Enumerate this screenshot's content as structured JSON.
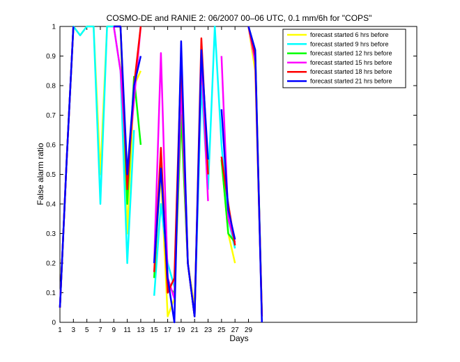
{
  "chart_data": {
    "type": "line",
    "title": "COSMO-DE and RANIE 2: 06/2007 00–06 UTC, 0.1 mm/6h for \"COPS\"",
    "xlabel": "Days",
    "ylabel": "False alarm ratio",
    "xlim": [
      1,
      54
    ],
    "ylim": [
      0,
      1
    ],
    "xticks": [
      1,
      3,
      5,
      7,
      9,
      11,
      13,
      15,
      17,
      19,
      21,
      23,
      25,
      27,
      29
    ],
    "yticks": [
      0,
      0.1,
      0.2,
      0.3,
      0.4,
      0.5,
      0.6,
      0.7,
      0.8,
      0.9,
      1
    ],
    "ytick_labels": [
      "0",
      "0.1",
      "0.2",
      "0.3",
      "0.4",
      "0.5",
      "0.6",
      "0.7",
      "0.8",
      "0.9",
      "1"
    ],
    "legend_position": "top-right",
    "series": [
      {
        "name": "forecast started 6 hrs before",
        "color": "#ffff00",
        "points": [
          [
            1,
            0.05
          ],
          [
            2,
            0.55
          ],
          [
            3,
            1.0
          ],
          [
            4,
            0.97
          ],
          [
            5,
            1.0
          ],
          [
            6,
            1.0
          ],
          [
            7,
            0.5
          ],
          [
            8,
            1.0
          ],
          [
            9,
            1.0
          ],
          [
            10,
            1.0
          ],
          [
            11,
            0.3
          ],
          [
            12,
            0.8
          ],
          [
            13,
            0.85
          ],
          [
            null,
            null
          ],
          [
            15,
            0.2
          ],
          [
            16,
            0.5
          ],
          [
            17,
            0.02
          ],
          [
            18,
            0.08
          ],
          [
            19,
            0.7
          ],
          [
            20,
            0.2
          ],
          [
            21,
            0.05
          ],
          [
            22,
            0.85
          ],
          [
            23,
            0.5
          ],
          [
            null,
            null
          ],
          [
            25,
            0.55
          ],
          [
            26,
            0.3
          ],
          [
            27,
            0.2
          ],
          [
            null,
            null
          ],
          [
            29,
            1.0
          ],
          [
            30,
            0.85
          ],
          [
            31,
            0.02
          ]
        ]
      },
      {
        "name": "forecast started 9 hrs before",
        "color": "#00ffff",
        "points": [
          [
            1,
            0.05
          ],
          [
            2,
            0.55
          ],
          [
            3,
            1.0
          ],
          [
            4,
            0.97
          ],
          [
            5,
            1.0
          ],
          [
            6,
            1.0
          ],
          [
            7,
            0.4
          ],
          [
            8,
            1.0
          ],
          [
            9,
            1.0
          ],
          [
            10,
            0.85
          ],
          [
            11,
            0.2
          ],
          [
            12,
            0.65
          ],
          [
            null,
            null
          ],
          [
            15,
            0.09
          ],
          [
            16,
            0.4
          ],
          [
            17,
            0.2
          ],
          [
            18,
            0.12
          ],
          [
            19,
            0.75
          ],
          [
            20,
            0.2
          ],
          [
            21,
            0.02
          ],
          [
            22,
            0.8
          ],
          [
            23,
            0.45
          ],
          [
            24,
            1.0
          ],
          [
            25,
            0.6
          ],
          [
            26,
            0.35
          ],
          [
            27,
            0.25
          ],
          [
            null,
            null
          ],
          [
            29,
            1.0
          ],
          [
            30,
            0.9
          ],
          [
            31,
            0.02
          ]
        ]
      },
      {
        "name": "forecast started 12 hrs before",
        "color": "#00ff00",
        "points": [
          [
            1,
            0.05
          ],
          [
            2,
            0.55
          ],
          [
            3,
            1.0
          ],
          [
            null,
            null
          ],
          [
            9,
            1.0
          ],
          [
            10,
            1.0
          ],
          [
            11,
            0.4
          ],
          [
            12,
            0.83
          ],
          [
            13,
            0.6
          ],
          [
            null,
            null
          ],
          [
            15,
            0.15
          ],
          [
            16,
            0.55
          ],
          [
            17,
            0.12
          ],
          [
            18,
            0.1
          ],
          [
            19,
            0.7
          ],
          [
            20,
            0.2
          ],
          [
            21,
            0.02
          ],
          [
            22,
            0.9
          ],
          [
            23,
            0.5
          ],
          [
            null,
            null
          ],
          [
            25,
            0.55
          ],
          [
            26,
            0.3
          ],
          [
            27,
            0.27
          ],
          [
            null,
            null
          ],
          [
            29,
            1.0
          ],
          [
            30,
            0.92
          ],
          [
            31,
            0.02
          ]
        ]
      },
      {
        "name": "forecast started 15 hrs before",
        "color": "#ff00ff",
        "points": [
          [
            1,
            0.05
          ],
          [
            2,
            0.55
          ],
          [
            3,
            1.0
          ],
          [
            null,
            null
          ],
          [
            9,
            1.0
          ],
          [
            10,
            0.85
          ],
          [
            11,
            0.5
          ],
          [
            12,
            0.75
          ],
          [
            13,
            1.0
          ],
          [
            null,
            null
          ],
          [
            15,
            0.2
          ],
          [
            16,
            0.91
          ],
          [
            17,
            0.15
          ],
          [
            18,
            0.08
          ],
          [
            19,
            0.8
          ],
          [
            20,
            0.2
          ],
          [
            21,
            0.02
          ],
          [
            22,
            0.9
          ],
          [
            23,
            0.41
          ],
          [
            null,
            null
          ],
          [
            25,
            0.9
          ],
          [
            26,
            0.35
          ],
          [
            27,
            0.27
          ],
          [
            null,
            null
          ],
          [
            29,
            1.0
          ],
          [
            30,
            0.88
          ],
          [
            31,
            0.02
          ]
        ]
      },
      {
        "name": "forecast started 18 hrs before",
        "color": "#ff0000",
        "points": [
          [
            1,
            0.05
          ],
          [
            2,
            0.55
          ],
          [
            3,
            1.0
          ],
          [
            null,
            null
          ],
          [
            9,
            1.0
          ],
          [
            10,
            1.0
          ],
          [
            11,
            0.45
          ],
          [
            12,
            0.8
          ],
          [
            13,
            1.0
          ],
          [
            null,
            null
          ],
          [
            15,
            0.17
          ],
          [
            16,
            0.59
          ],
          [
            17,
            0.1
          ],
          [
            18,
            0.15
          ],
          [
            19,
            0.9
          ],
          [
            20,
            0.2
          ],
          [
            21,
            0.02
          ],
          [
            22,
            0.96
          ],
          [
            23,
            0.5
          ],
          [
            null,
            null
          ],
          [
            25,
            0.56
          ],
          [
            26,
            0.4
          ],
          [
            27,
            0.26
          ],
          [
            null,
            null
          ],
          [
            29,
            1.0
          ],
          [
            30,
            0.9
          ],
          [
            31,
            0.02
          ]
        ]
      },
      {
        "name": "forecast started 21 hrs before",
        "color": "#0000ff",
        "points": [
          [
            1,
            0.05
          ],
          [
            2,
            0.55
          ],
          [
            3,
            1.0
          ],
          [
            null,
            null
          ],
          [
            9,
            1.0
          ],
          [
            10,
            1.0
          ],
          [
            11,
            0.5
          ],
          [
            12,
            0.8
          ],
          [
            13,
            0.9
          ],
          [
            null,
            null
          ],
          [
            15,
            0.2
          ],
          [
            16,
            0.52
          ],
          [
            17,
            0.15
          ],
          [
            18,
            0.0
          ],
          [
            19,
            0.95
          ],
          [
            20,
            0.2
          ],
          [
            21,
            0.02
          ],
          [
            22,
            0.92
          ],
          [
            23,
            0.55
          ],
          [
            null,
            null
          ],
          [
            25,
            0.72
          ],
          [
            26,
            0.38
          ],
          [
            27,
            0.28
          ],
          [
            null,
            null
          ],
          [
            29,
            1.0
          ],
          [
            30,
            0.92
          ],
          [
            31,
            0.0
          ]
        ]
      }
    ]
  }
}
